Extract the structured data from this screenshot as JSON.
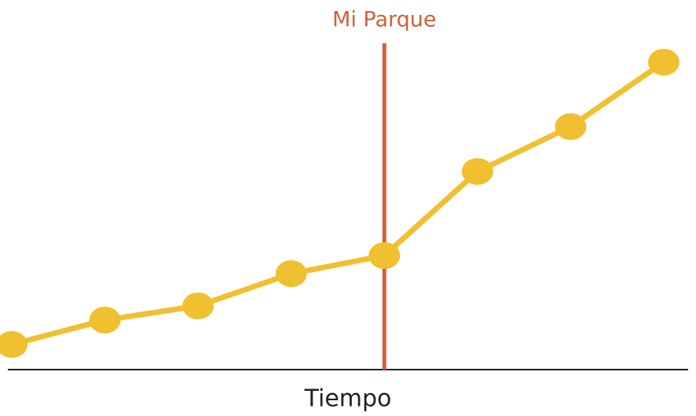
{
  "chart_data": {
    "type": "line",
    "x_label": "Tiempo",
    "categories": [
      null,
      null,
      null,
      null,
      null,
      null,
      null,
      null
    ],
    "series": [
      {
        "name": null,
        "color": "#f0c030",
        "values": [
          32,
          63,
          81,
          122,
          145,
          252,
          309,
          391
        ]
      }
    ],
    "ylim": [
      0,
      420
    ],
    "annotation": {
      "text": "Mi Parque",
      "index": 4,
      "color": "#d0603a"
    }
  }
}
